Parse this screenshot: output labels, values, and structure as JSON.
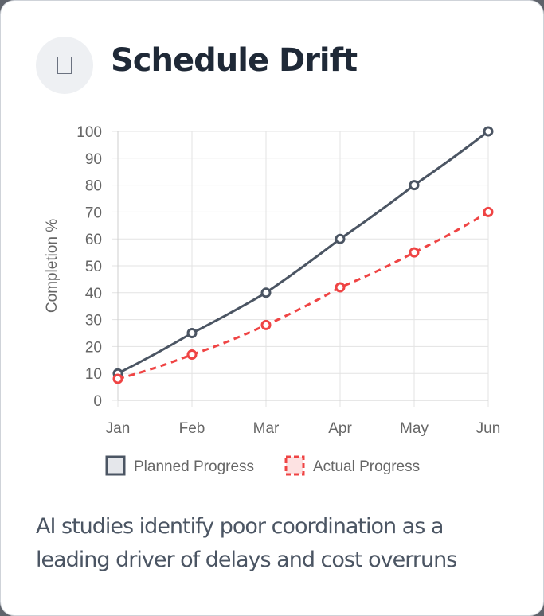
{
  "card": {
    "icon": "document-icon",
    "title": "Schedule Drift",
    "caption": "AI studies identify poor coordination as a leading driver of delays and cost overruns"
  },
  "chart_data": {
    "type": "line",
    "categories": [
      "Jan",
      "Feb",
      "Mar",
      "Apr",
      "May",
      "Jun"
    ],
    "ylabel": "Completion %",
    "ylim": [
      0,
      100
    ],
    "ytick_step": 10,
    "grid": true,
    "legend_position": "bottom",
    "series": [
      {
        "name": "Planned Progress",
        "values": [
          10,
          25,
          40,
          60,
          80,
          100
        ],
        "color": "#4b5563",
        "style": "solid"
      },
      {
        "name": "Actual Progress",
        "values": [
          8,
          17,
          28,
          42,
          55,
          70
        ],
        "color": "#ef4444",
        "style": "dashed"
      }
    ]
  }
}
